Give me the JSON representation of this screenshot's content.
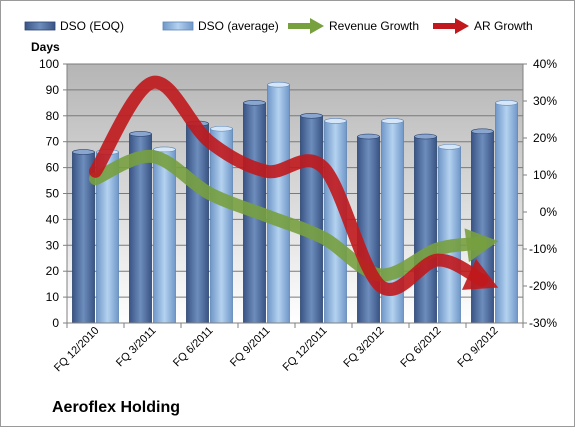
{
  "chart_data": {
    "type": "bar",
    "company": "Aeroflex Holding",
    "ylabel": "Days",
    "categories": [
      "FQ 12/2010",
      "FQ 3/2011",
      "FQ 6/2011",
      "FQ 9/2011",
      "FQ 12/2011",
      "FQ 3/2012",
      "FQ 6/2012",
      "FQ 9/2012"
    ],
    "ylim": [
      0,
      100
    ],
    "y_ticks": [
      "0",
      "10",
      "20",
      "30",
      "40",
      "50",
      "60",
      "70",
      "80",
      "90",
      "100"
    ],
    "y2lim": [
      -30,
      40
    ],
    "y2_ticks": [
      "-30%",
      "-20%",
      "-10%",
      "0%",
      "10%",
      "20%",
      "30%",
      "40%"
    ],
    "grid": true,
    "legend_position": "top",
    "series": [
      {
        "name": "DSO (EOQ)",
        "kind": "bar",
        "axis": "left",
        "color": "#4d6d9e",
        "values": [
          66,
          73,
          77,
          85,
          80,
          72,
          72,
          74
        ]
      },
      {
        "name": "DSO (average)",
        "kind": "bar",
        "axis": "left",
        "color": "#8eb4e0",
        "values": [
          66,
          67,
          75,
          92,
          78,
          78,
          68,
          85
        ]
      },
      {
        "name": "Revenue Growth",
        "kind": "arrow-line",
        "axis": "right",
        "color": "#77a03f",
        "values": [
          9,
          15,
          5,
          -1,
          -7,
          -17,
          -10,
          -8
        ]
      },
      {
        "name": "AR Growth",
        "kind": "arrow-line",
        "axis": "right",
        "color": "#c0181c",
        "values": [
          11,
          35,
          19,
          11,
          12,
          -20,
          -13,
          -20
        ]
      }
    ]
  }
}
